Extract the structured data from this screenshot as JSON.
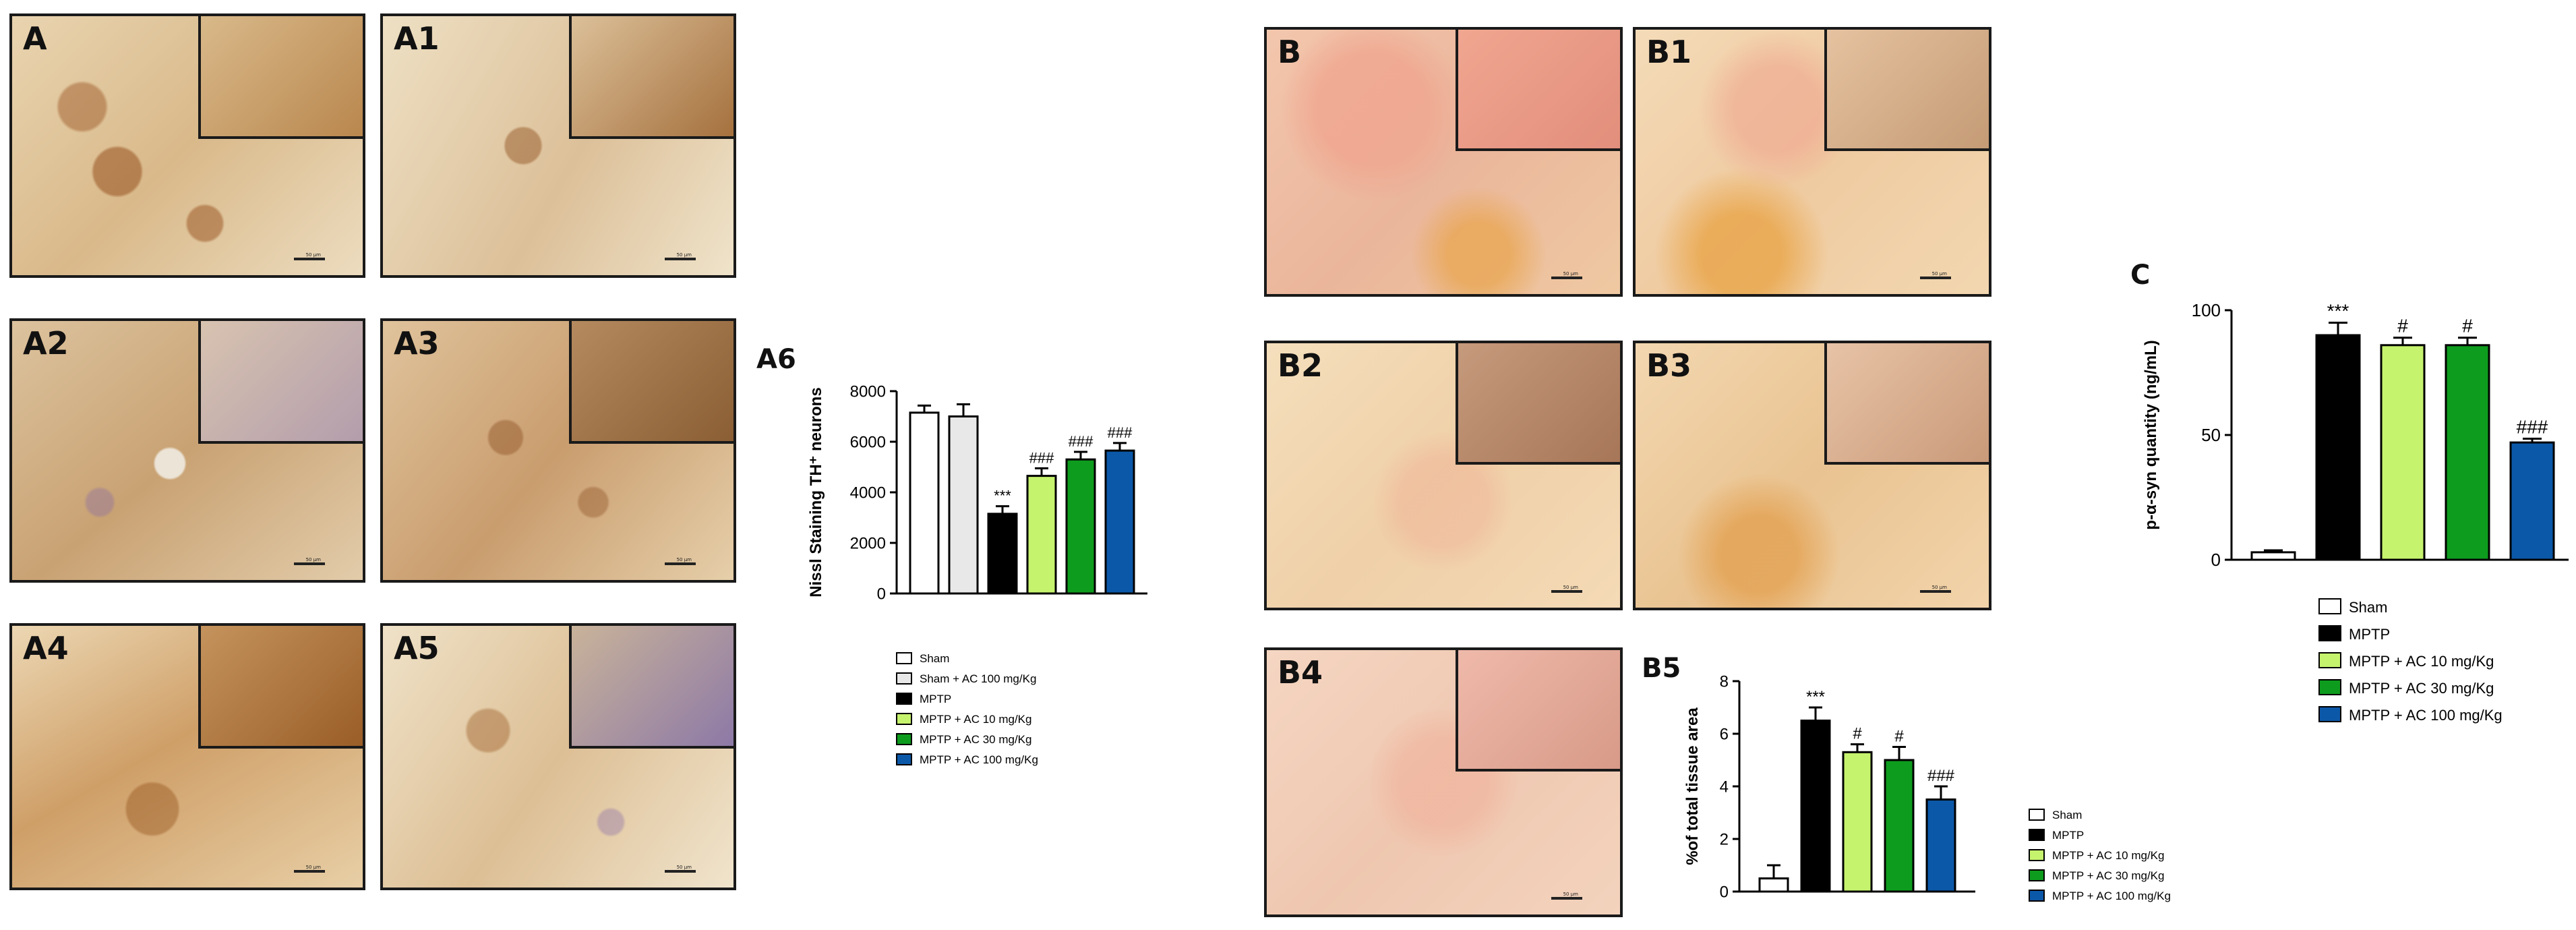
{
  "panels_A": [
    {
      "id": "A",
      "label": "A",
      "scale": "50 µm"
    },
    {
      "id": "A1",
      "label": "A1",
      "scale": "50 µm"
    },
    {
      "id": "A2",
      "label": "A2",
      "scale": "50 µm"
    },
    {
      "id": "A3",
      "label": "A3",
      "scale": "50 µm"
    },
    {
      "id": "A4",
      "label": "A4",
      "scale": "50 µm"
    },
    {
      "id": "A5",
      "label": "A5",
      "scale": "50 µm"
    }
  ],
  "panels_B": [
    {
      "id": "B",
      "label": "B",
      "scale": "50 µm"
    },
    {
      "id": "B1",
      "label": "B1",
      "scale": "50 µm"
    },
    {
      "id": "B2",
      "label": "B2",
      "scale": "50 µm"
    },
    {
      "id": "B3",
      "label": "B3",
      "scale": "50 µm"
    },
    {
      "id": "B4",
      "label": "B4",
      "scale": "50 µm"
    }
  ],
  "colors": {
    "sham": "#ffffff",
    "sham_ac": "#e8e8e8",
    "mptp": "#000000",
    "ac10": "#c6f36e",
    "ac30": "#0e9c1e",
    "ac100": "#0c58a8",
    "ihc_brown": "#9a5a22",
    "ihc_bg": "#ead7b4",
    "congo_pink": "#f0a690",
    "congo_bg": "#f3d9b2",
    "nissl_violet": "#8063a8"
  },
  "chart_data": [
    {
      "id": "A6",
      "panel_label": "A6",
      "type": "bar",
      "categories": [
        "Sham",
        "Sham + AC 100 mg/Kg",
        "MPTP",
        "MPTP + AC 10 mg/Kg",
        "MPTP + AC 30 mg/Kg",
        "MPTP + AC 100 mg/Kg"
      ],
      "values": [
        7150,
        7000,
        3150,
        4650,
        5300,
        5650
      ],
      "errors": [
        280,
        480,
        300,
        300,
        300,
        300
      ],
      "significance": [
        "",
        "",
        "***",
        "###",
        "###",
        "###"
      ],
      "fills": [
        "#ffffff",
        "#e8e8e8",
        "#000000",
        "#c6f36e",
        "#0e9c1e",
        "#0c58a8"
      ],
      "ylabel": "Nissl Staining  TH⁺ neurons",
      "ylim": [
        0,
        8000
      ],
      "yticks": [
        "0",
        "2000",
        "4000",
        "6000",
        "8000"
      ],
      "legend": [
        "Sham",
        "Sham + AC 100 mg/Kg",
        "MPTP",
        "MPTP + AC 10 mg/Kg",
        "MPTP + AC 30 mg/Kg",
        "MPTP + AC 100 mg/Kg"
      ],
      "legend_position": "bottom",
      "grid": false
    },
    {
      "id": "B5",
      "panel_label": "B5",
      "type": "bar",
      "categories": [
        "Sham",
        "MPTP",
        "MPTP + AC 10 mg/Kg",
        "MPTP + AC 30 mg/Kg",
        "MPTP + AC 100 mg/Kg"
      ],
      "values": [
        0.5,
        6.5,
        5.3,
        5.0,
        3.5
      ],
      "errors": [
        0.5,
        0.5,
        0.3,
        0.5,
        0.5
      ],
      "significance": [
        "",
        "***",
        "#",
        "#",
        "###"
      ],
      "fills": [
        "#ffffff",
        "#000000",
        "#c6f36e",
        "#0e9c1e",
        "#0c58a8"
      ],
      "ylabel": "%of total tissue area",
      "ylim": [
        0,
        8
      ],
      "yticks": [
        "0",
        "2",
        "4",
        "6",
        "8"
      ],
      "legend": [
        "Sham",
        "MPTP",
        "MPTP + AC 10 mg/Kg",
        "MPTP + AC 30 mg/Kg",
        "MPTP + AC 100 mg/Kg"
      ],
      "legend_position": "bottom-right",
      "grid": false
    },
    {
      "id": "C",
      "panel_label": "C",
      "type": "bar",
      "categories": [
        "Sham",
        "MPTP",
        "MPTP + AC 10 mg/Kg",
        "MPTP + AC 30 mg/Kg",
        "MPTP + AC 100 mg/Kg"
      ],
      "values": [
        3,
        90,
        86,
        86,
        47
      ],
      "errors": [
        0.8,
        5,
        3,
        3,
        1.5
      ],
      "significance": [
        "",
        "***",
        "#",
        "#",
        "###"
      ],
      "fills": [
        "#ffffff",
        "#000000",
        "#c6f36e",
        "#0e9c1e",
        "#0c58a8"
      ],
      "ylabel": "p-α-syn quantity (ng/mL)",
      "ylim": [
        0,
        100
      ],
      "yticks": [
        "0",
        "50",
        "100"
      ],
      "legend": [
        "Sham",
        "MPTP",
        "MPTP + AC 10 mg/Kg",
        "MPTP + AC 30 mg/Kg",
        "MPTP + AC 100 mg/Kg"
      ],
      "legend_position": "bottom",
      "grid": false
    }
  ]
}
